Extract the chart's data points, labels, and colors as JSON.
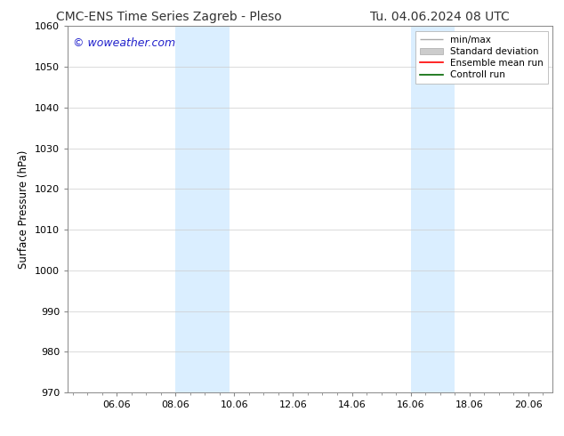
{
  "title_left": "CMC-ENS Time Series Zagreb - Pleso",
  "title_right": "Tu. 04.06.2024 08 UTC",
  "ylabel": "Surface Pressure (hPa)",
  "ylim": [
    970,
    1060
  ],
  "yticks": [
    970,
    980,
    990,
    1000,
    1010,
    1020,
    1030,
    1040,
    1050,
    1060
  ],
  "xtick_labels": [
    "06.06",
    "08.06",
    "10.06",
    "12.06",
    "14.06",
    "16.06",
    "18.06",
    "20.06"
  ],
  "xtick_positions": [
    2.0,
    4.0,
    6.0,
    8.0,
    10.0,
    12.0,
    14.0,
    16.0
  ],
  "xlim": [
    0.333,
    16.833
  ],
  "shaded_regions": [
    {
      "x_start": 4.0,
      "x_end": 5.833
    },
    {
      "x_start": 12.0,
      "x_end": 13.5
    }
  ],
  "shaded_color": "#daeeff",
  "watermark_text": "© woweather.com",
  "watermark_color": "#2222cc",
  "background_color": "#ffffff",
  "grid_color": "#cccccc",
  "title_fontsize": 10,
  "label_fontsize": 8.5,
  "tick_fontsize": 8
}
